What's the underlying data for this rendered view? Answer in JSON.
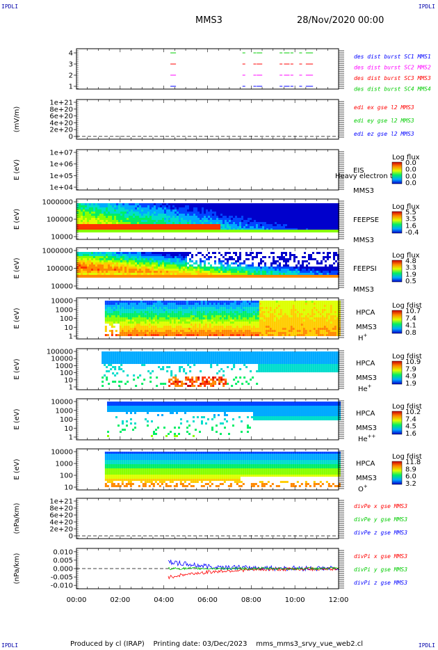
{
  "corner_label": "IPDLI",
  "header": {
    "title": "MMS3",
    "datetime": "28/Nov/2020 00:00"
  },
  "footer": {
    "produced_by": "Produced by cl (IRAP)",
    "printing_date": "Printing date: 03/Dec/2023",
    "filename": "mms_mms3_srvy_vue_web2.cl"
  },
  "chart_data": [
    {
      "type": "line",
      "id": "burst",
      "yticks": [
        "4",
        "3",
        "2",
        "1"
      ],
      "legend": [
        {
          "text": "des dist burst SC1 MMS1",
          "color": "#0000ff"
        },
        {
          "text": "des dist burst SC2 MMS2",
          "color": "#ff00ff"
        },
        {
          "text": "des dist burst SC3 MMS3",
          "color": "#ff0000"
        },
        {
          "text": "des dist burst SC4 MMS4",
          "color": "#00cc00"
        }
      ],
      "bursts_hours": [
        4.3,
        7.6,
        8.1,
        8.25,
        8.35,
        9.3,
        9.5,
        9.8,
        10.2,
        10.5,
        10.7
      ]
    },
    {
      "type": "line",
      "id": "edi",
      "ylabel": "(mV/m)",
      "yticks": [
        "1e+21",
        "8e+20",
        "6e+20",
        "4e+20",
        "2e+20",
        "0"
      ],
      "legend": [
        {
          "text": "edi ex gse l2 MMS3",
          "color": "#ff0000"
        },
        {
          "text": "edi ey gse l2 MMS3",
          "color": "#00cc00"
        },
        {
          "text": "edi ez gse l2 MMS3",
          "color": "#0000ff"
        }
      ]
    },
    {
      "type": "heatmap",
      "id": "eis",
      "ylabel": "E (eV)",
      "yticks": [
        "1e+07",
        "1e+06",
        "1e+05",
        "1e+04"
      ],
      "instrument": "EIS",
      "subtitle": "Heavy electron to",
      "sc": "MMS3",
      "colorbar_title": "Log flux",
      "colorbar_ticks": [
        "0.0",
        "0.0",
        "0.0",
        "0.0"
      ]
    },
    {
      "type": "heatmap",
      "id": "feepse",
      "ylabel": "E (eV)",
      "yticks": [
        "1000000",
        "100000",
        "10000"
      ],
      "instrument": "FEEPSE",
      "sc": "MMS3",
      "colorbar_title": "Log flux",
      "colorbar_ticks": [
        "5.5",
        "3.5",
        "1.6",
        "-0.4"
      ]
    },
    {
      "type": "heatmap",
      "id": "feepsi",
      "ylabel": "E (eV)",
      "yticks": [
        "1000000",
        "100000",
        "10000"
      ],
      "instrument": "FEEPSI",
      "sc": "MMS3",
      "colorbar_title": "Log flux",
      "colorbar_ticks": [
        "4.8",
        "3.3",
        "1.9",
        "0.5"
      ]
    },
    {
      "type": "heatmap",
      "id": "hpca_h",
      "ylabel": "E (eV)",
      "yticks": [
        "10000",
        "1000",
        "100",
        "10",
        "1"
      ],
      "instrument": "HPCA",
      "sc": "MMS3",
      "species": "H",
      "charge": "+",
      "colorbar_title": "Log fdist",
      "colorbar_ticks": [
        "10.7",
        "7.4",
        "4.1",
        "0.8"
      ]
    },
    {
      "type": "heatmap",
      "id": "hpca_he",
      "ylabel": "E (eV)",
      "yticks": [
        "100000",
        "10000",
        "1000",
        "100",
        "10",
        "1"
      ],
      "instrument": "HPCA",
      "sc": "MMS3",
      "species": "He",
      "charge": "+",
      "colorbar_title": "Log fdist",
      "colorbar_ticks": [
        "10.9",
        "7.9",
        "4.9",
        "1.9"
      ]
    },
    {
      "type": "heatmap",
      "id": "hpca_hepp",
      "ylabel": "E (eV)",
      "yticks": [
        "10000",
        "1000",
        "100",
        "10",
        "1"
      ],
      "instrument": "HPCA",
      "sc": "MMS3",
      "species": "He",
      "charge": "++",
      "colorbar_title": "Log fdist",
      "colorbar_ticks": [
        "10.2",
        "7.4",
        "4.5",
        "1.6"
      ]
    },
    {
      "type": "heatmap",
      "id": "hpca_o",
      "ylabel": "E (eV)",
      "yticks": [
        "10000",
        "1000",
        "100",
        "10"
      ],
      "instrument": "HPCA",
      "sc": "MMS3",
      "species": "O",
      "charge": "+",
      "colorbar_title": "Log fdist",
      "colorbar_ticks": [
        "11.8",
        "8.9",
        "6.0",
        "3.2"
      ]
    },
    {
      "type": "line",
      "id": "divpe",
      "ylabel": "(nPa/km)",
      "yticks": [
        "1e+21",
        "8e+20",
        "6e+20",
        "4e+20",
        "2e+20",
        "0"
      ],
      "legend": [
        {
          "text": "divPe x gse MMS3",
          "color": "#ff0000"
        },
        {
          "text": "divPe y gse MMS3",
          "color": "#00cc00"
        },
        {
          "text": "divPe z gse MMS3",
          "color": "#0000ff"
        }
      ]
    },
    {
      "type": "line",
      "id": "divpi",
      "ylabel": "(nPa/km)",
      "yticks": [
        "0.010",
        "0.005",
        "0.000",
        "-0.005",
        "-0.010"
      ],
      "ylim": [
        -0.012,
        0.012
      ],
      "legend": [
        {
          "text": "divPi x gse MMS3",
          "color": "#ff0000"
        },
        {
          "text": "divPi y gse MMS3",
          "color": "#00cc00"
        },
        {
          "text": "divPi z gse MMS3",
          "color": "#0000ff"
        }
      ]
    }
  ],
  "xaxis": {
    "ticks": [
      "00:00",
      "02:00",
      "04:00",
      "06:00",
      "08:00",
      "10:00",
      "12:00"
    ],
    "xlim_hours": [
      0,
      12
    ]
  }
}
